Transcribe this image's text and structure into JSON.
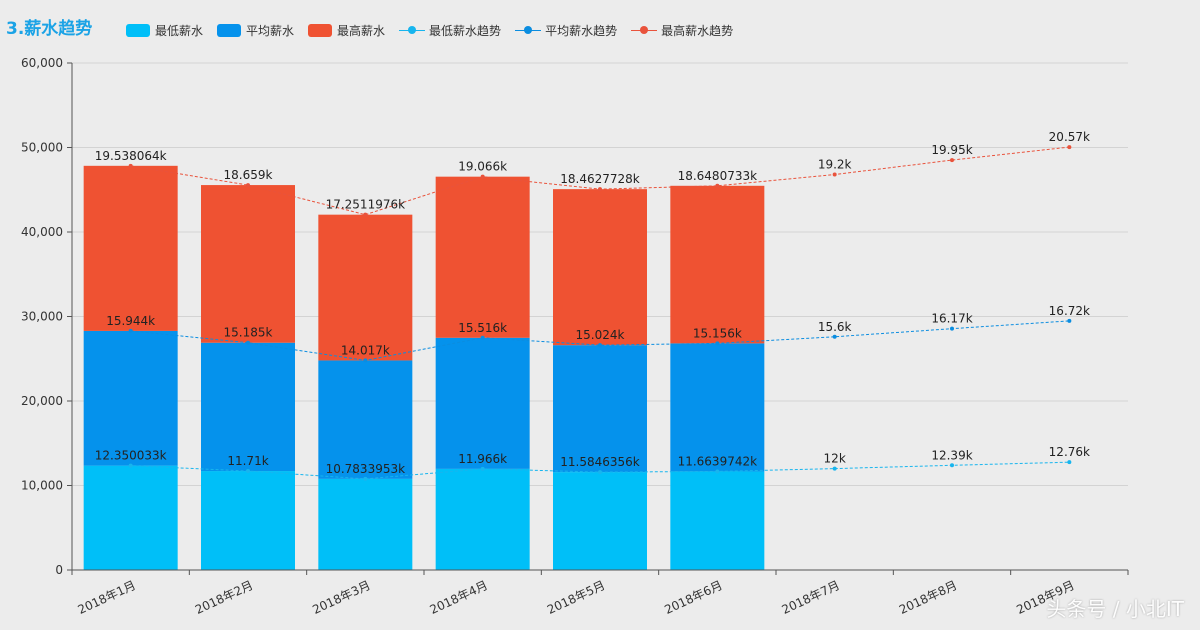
{
  "title": "3.薪水趋势",
  "watermark": "头条号 / 小北IT",
  "legend": [
    {
      "label": "最低薪水",
      "kind": "box",
      "color": "#00bff8"
    },
    {
      "label": "平均薪水",
      "kind": "box",
      "color": "#0592ec"
    },
    {
      "label": "最高薪水",
      "kind": "box",
      "color": "#ef5232"
    },
    {
      "label": "最低薪水趋势",
      "kind": "line",
      "color": "#17b5ee"
    },
    {
      "label": "平均薪水趋势",
      "kind": "line",
      "color": "#0b8de0"
    },
    {
      "label": "最高薪水趋势",
      "kind": "line",
      "color": "#e9533c"
    }
  ],
  "chart_data": {
    "type": "bar",
    "stacked": true,
    "categories": [
      "2018年1月",
      "2018年2月",
      "2018年3月",
      "2018年4月",
      "2018年5月",
      "2018年6月",
      "2018年7月",
      "2018年8月",
      "2018年9月"
    ],
    "ylim": [
      0,
      60000
    ],
    "yticks": [
      0,
      10000,
      20000,
      30000,
      40000,
      50000,
      60000
    ],
    "ytick_labels": [
      "0",
      "10,000",
      "20,000",
      "30,000",
      "40,000",
      "50,000",
      "60,000"
    ],
    "series": [
      {
        "name": "最低薪水",
        "color": "#00bff8",
        "values": [
          12350.033,
          11710,
          10783.3953,
          11966,
          11584.6356,
          11663.9742,
          null,
          null,
          null
        ]
      },
      {
        "name": "平均薪水",
        "color": "#0592ec",
        "values": [
          15944,
          15185,
          14017,
          15516,
          15024,
          15156,
          null,
          null,
          null
        ]
      },
      {
        "name": "最高薪水",
        "color": "#ef5232",
        "values": [
          19538.064,
          18659,
          17251.1976,
          19066,
          18462.7728,
          18648.0733,
          null,
          null,
          null
        ]
      }
    ],
    "trend_series": [
      {
        "name": "最低薪水趋势",
        "color": "#17b5ee",
        "values": [
          12350.033,
          11710,
          10783.3953,
          11966,
          11584.6356,
          11663.9742,
          12000,
          12390,
          12760
        ],
        "labels": [
          "12.350033k",
          "11.71k",
          "10.7833953k",
          "11.966k",
          "11.5846356k",
          "11.6639742k",
          "12k",
          "12.39k",
          "12.76k"
        ]
      },
      {
        "name": "平均薪水趋势",
        "color": "#0b8de0",
        "values": [
          28294.033,
          26895,
          24800.3953,
          27482,
          26608.6356,
          26819.9742,
          27600,
          28560,
          29480
        ],
        "labels": [
          "15.944k",
          "15.185k",
          "14.017k",
          "15.516k",
          "15.024k",
          "15.156k",
          "15.6k",
          "16.17k",
          "16.72k"
        ]
      },
      {
        "name": "最高薪水趋势",
        "color": "#e9533c",
        "values": [
          47832.097,
          45554,
          42051.5929,
          46548,
          45071.4084,
          45468.0475,
          46800,
          48510,
          50050
        ],
        "labels": [
          "19.538064k",
          "18.659k",
          "17.2511976k",
          "19.066k",
          "18.4627728k",
          "18.6480733k",
          "19.2k",
          "19.95k",
          "20.57k"
        ]
      }
    ]
  }
}
